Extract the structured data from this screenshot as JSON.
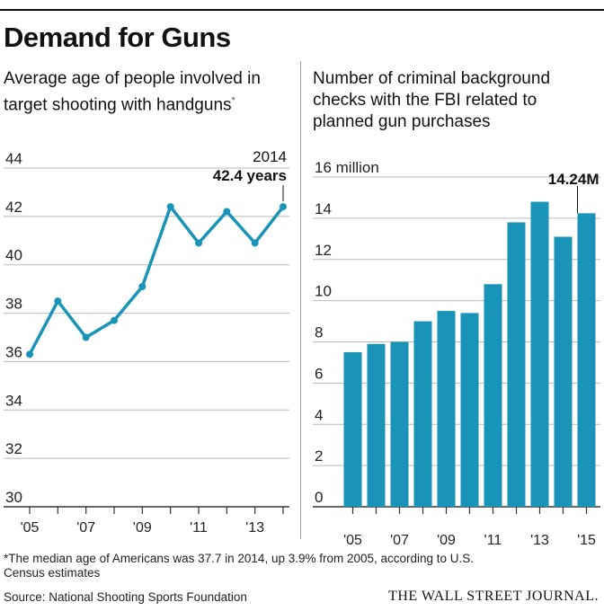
{
  "header": {
    "title": "Demand for Guns"
  },
  "chart_data": [
    {
      "type": "line",
      "title": "Average age of people involved in target shooting with handguns",
      "title_mark": "*",
      "x": [
        2005,
        2006,
        2007,
        2008,
        2009,
        2010,
        2011,
        2012,
        2013,
        2014
      ],
      "values": [
        36.3,
        38.5,
        37.0,
        37.7,
        39.1,
        42.4,
        40.9,
        42.2,
        40.9,
        42.4
      ],
      "ylim": [
        30,
        44
      ],
      "yticks": [
        "44",
        "42",
        "40",
        "38",
        "36",
        "34",
        "32",
        "30"
      ],
      "xtick_labels": [
        "'05",
        "'07",
        "'09",
        "'11",
        "'13"
      ],
      "annotation": {
        "year": "2014",
        "value": "42.4 years"
      },
      "color": "#1a93b8"
    },
    {
      "type": "bar",
      "title": "Number of criminal background checks with the FBI related to planned gun purchases",
      "x": [
        2005,
        2006,
        2007,
        2008,
        2009,
        2010,
        2011,
        2012,
        2013,
        2014,
        2015
      ],
      "values": [
        7.5,
        7.9,
        8.0,
        9.0,
        9.5,
        9.4,
        10.8,
        13.8,
        14.8,
        13.1,
        14.24
      ],
      "ylim": [
        0,
        16
      ],
      "yticks": [
        "16 million",
        "14",
        "12",
        "10",
        "8",
        "6",
        "4",
        "2",
        "0"
      ],
      "xtick_labels": [
        "'05",
        "'07",
        "'09",
        "'11",
        "'13",
        "'15"
      ],
      "annotation": {
        "value": "14.24M"
      },
      "color": "#1a93b8"
    }
  ],
  "footer": {
    "note_mark": "*",
    "note": "The median age of Americans was 37.7 in 2014, up 3.9% from 2005, according to U.S. Census estimates",
    "source": "Source: National Shooting Sports Foundation",
    "brand": "THE WALL STREET JOURNAL."
  }
}
